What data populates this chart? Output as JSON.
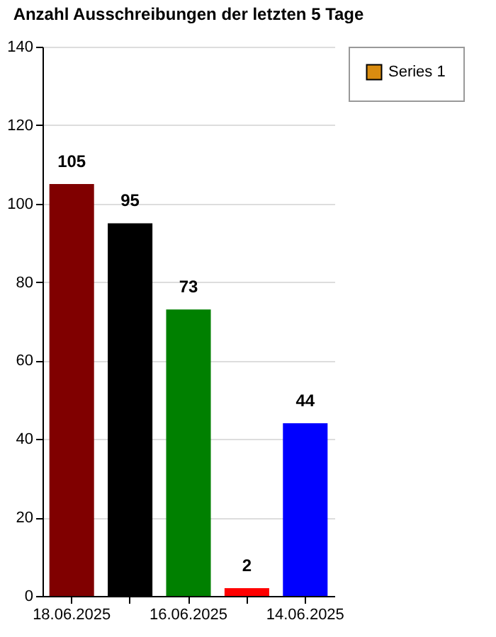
{
  "chart_data": {
    "type": "bar",
    "title": "Anzahl Ausschreibungen der letzten 5 Tage",
    "categories": [
      "18.06.2025",
      null,
      "16.06.2025",
      null,
      "14.06.2025"
    ],
    "series": [
      {
        "name": "Series 1",
        "color": "#d98c10",
        "colors": [
          "#800000",
          "#000000",
          "#008000",
          "#ff0000",
          "#0000ff"
        ],
        "values": [
          105,
          95,
          73,
          2,
          44
        ]
      }
    ],
    "ylim": [
      0,
      140
    ],
    "yticks": [
      0,
      20,
      40,
      60,
      80,
      100,
      120,
      140
    ],
    "grid": "y",
    "legend": "top right",
    "data_labels": true
  }
}
